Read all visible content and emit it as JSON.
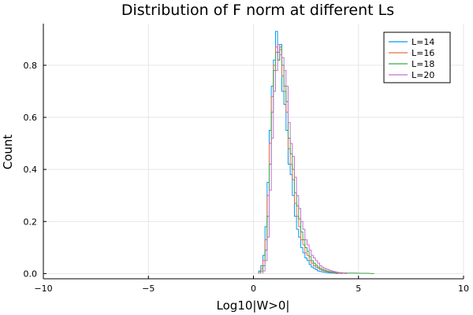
{
  "chart_data": {
    "type": "line",
    "title": "Distribution of F norm at different Ls",
    "xlabel": "Log10|W>0|",
    "ylabel": "Count",
    "xlim": [
      -10,
      10
    ],
    "ylim": [
      -0.02,
      0.96
    ],
    "xticks": [
      -10,
      -5,
      0,
      5,
      10
    ],
    "xtick_labels": [
      "−10",
      "−5",
      "0",
      "5",
      "10"
    ],
    "yticks": [
      0,
      0.2,
      0.4,
      0.6,
      0.8
    ],
    "ytick_labels": [
      "0.0",
      "0.2",
      "0.4",
      "0.6",
      "0.8"
    ],
    "grid": true,
    "legend": "top-right",
    "series": [
      {
        "name": "L=14",
        "color": "#009AFA",
        "x": [
          0.3,
          0.4,
          0.5,
          0.6,
          0.7,
          0.8,
          0.9,
          1.0,
          1.1,
          1.2,
          1.3,
          1.4,
          1.5,
          1.6,
          1.7,
          1.8,
          1.9,
          2.0,
          2.1,
          2.2,
          2.3,
          2.4,
          2.5,
          2.6,
          2.7,
          2.8,
          2.9,
          3.0,
          3.1,
          3.2,
          3.3,
          3.4,
          3.5,
          3.6,
          3.7,
          3.8,
          3.9,
          4.0
        ],
        "y": [
          0.01,
          0.03,
          0.07,
          0.18,
          0.35,
          0.55,
          0.72,
          0.82,
          0.93,
          0.85,
          0.88,
          0.7,
          0.65,
          0.55,
          0.42,
          0.38,
          0.3,
          0.22,
          0.17,
          0.14,
          0.1,
          0.08,
          0.06,
          0.05,
          0.035,
          0.025,
          0.02,
          0.015,
          0.01,
          0.008,
          0.006,
          0.005,
          0.004,
          0.003,
          0.002,
          0.002,
          0.001,
          0
        ]
      },
      {
        "name": "L=16",
        "color": "#E36F47",
        "x": [
          0.3,
          0.4,
          0.5,
          0.6,
          0.7,
          0.8,
          0.9,
          1.0,
          1.1,
          1.2,
          1.3,
          1.4,
          1.5,
          1.6,
          1.7,
          1.8,
          1.9,
          2.0,
          2.1,
          2.2,
          2.3,
          2.4,
          2.5,
          2.6,
          2.7,
          2.8,
          2.9,
          3.0,
          3.1,
          3.2,
          3.3,
          3.4,
          3.5,
          3.6,
          3.7,
          3.8,
          3.9,
          4.0,
          4.1,
          4.2
        ],
        "y": [
          0.005,
          0.02,
          0.05,
          0.13,
          0.3,
          0.5,
          0.68,
          0.8,
          0.87,
          0.82,
          0.86,
          0.76,
          0.7,
          0.62,
          0.48,
          0.42,
          0.36,
          0.27,
          0.22,
          0.18,
          0.13,
          0.11,
          0.08,
          0.07,
          0.05,
          0.04,
          0.03,
          0.025,
          0.02,
          0.015,
          0.012,
          0.01,
          0.008,
          0.006,
          0.005,
          0.004,
          0.003,
          0.002,
          0.001,
          0
        ]
      },
      {
        "name": "L=18",
        "color": "#3EA44E",
        "x": [
          0.4,
          0.5,
          0.6,
          0.7,
          0.8,
          0.9,
          1.0,
          1.1,
          1.2,
          1.3,
          1.4,
          1.5,
          1.6,
          1.7,
          1.8,
          1.9,
          2.0,
          2.1,
          2.2,
          2.3,
          2.4,
          2.5,
          2.6,
          2.7,
          2.8,
          2.9,
          3.0,
          3.1,
          3.2,
          3.3,
          3.4,
          3.5,
          3.6,
          3.7,
          3.8,
          3.9,
          4.0,
          4.2,
          4.5,
          4.8,
          5.1,
          5.4,
          5.7
        ],
        "y": [
          0.01,
          0.03,
          0.09,
          0.22,
          0.42,
          0.62,
          0.78,
          0.85,
          0.82,
          0.87,
          0.8,
          0.72,
          0.66,
          0.52,
          0.46,
          0.4,
          0.31,
          0.26,
          0.21,
          0.16,
          0.13,
          0.1,
          0.085,
          0.065,
          0.05,
          0.04,
          0.032,
          0.025,
          0.02,
          0.016,
          0.013,
          0.01,
          0.008,
          0.007,
          0.006,
          0.005,
          0.004,
          0.003,
          0.002,
          0.002,
          0.001,
          0.001,
          0
        ]
      },
      {
        "name": "L=20",
        "color": "#C271D2",
        "x": [
          0.5,
          0.6,
          0.7,
          0.8,
          0.9,
          1.0,
          1.1,
          1.2,
          1.3,
          1.4,
          1.5,
          1.6,
          1.7,
          1.8,
          1.9,
          2.0,
          2.1,
          2.2,
          2.3,
          2.4,
          2.5,
          2.6,
          2.7,
          2.8,
          2.9,
          3.0,
          3.1,
          3.2,
          3.3,
          3.4,
          3.5,
          3.6,
          3.7,
          3.8,
          3.9,
          4.0,
          4.1,
          4.2,
          4.3,
          4.4
        ],
        "y": [
          0.01,
          0.05,
          0.14,
          0.32,
          0.52,
          0.7,
          0.78,
          0.88,
          0.84,
          0.83,
          0.78,
          0.72,
          0.58,
          0.5,
          0.45,
          0.37,
          0.3,
          0.25,
          0.2,
          0.17,
          0.13,
          0.11,
          0.09,
          0.07,
          0.06,
          0.05,
          0.04,
          0.03,
          0.025,
          0.02,
          0.017,
          0.014,
          0.011,
          0.009,
          0.007,
          0.005,
          0.004,
          0.003,
          0.002,
          0
        ]
      }
    ]
  }
}
